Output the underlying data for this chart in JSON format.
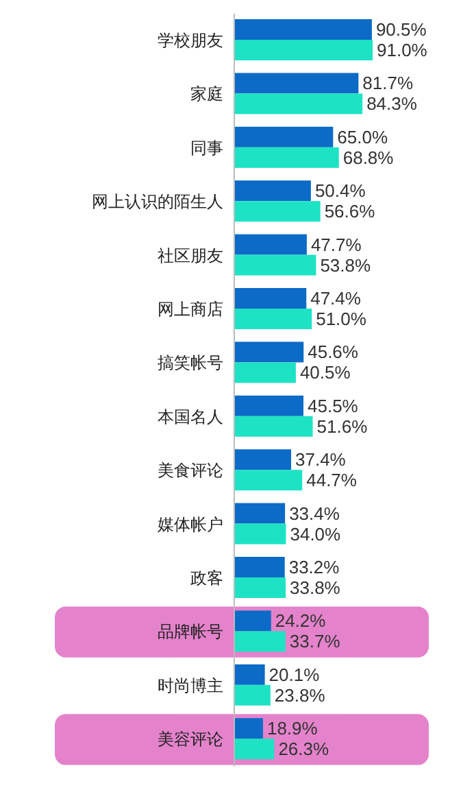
{
  "chart_data": {
    "type": "bar",
    "orientation": "horizontal",
    "categories": [
      "学校朋友",
      "家庭",
      "同事",
      "网上认识的陌生人",
      "社区朋友",
      "网上商店",
      "搞笑帐号",
      "本国名人",
      "美食评论",
      "媒体帐户",
      "政客",
      "品牌帐号",
      "时尚博主",
      "美容评论"
    ],
    "series": [
      {
        "color": "#0b6bc6",
        "values": [
          90.5,
          81.7,
          65.0,
          50.4,
          47.7,
          47.4,
          45.6,
          45.5,
          37.4,
          33.4,
          33.2,
          24.2,
          20.1,
          18.9
        ],
        "value_labels": [
          "90.5%",
          "81.7%",
          "65.0%",
          "50.4%",
          "47.7%",
          "47.4%",
          "45.6%",
          "45.5%",
          "37.4%",
          "33.4%",
          "33.2%",
          "24.2%",
          "20.1%",
          "18.9%"
        ]
      },
      {
        "color": "#1de3c4",
        "values": [
          91.0,
          84.3,
          68.8,
          56.6,
          53.8,
          51.0,
          40.5,
          51.6,
          44.7,
          34.0,
          33.8,
          33.7,
          23.8,
          26.3
        ],
        "value_labels": [
          "91.0%",
          "84.3%",
          "68.8%",
          "56.6%",
          "53.8%",
          "51.0%",
          "40.5%",
          "51.6%",
          "44.7%",
          "34.0%",
          "33.8%",
          "33.7%",
          "23.8%",
          "26.3%"
        ]
      }
    ],
    "bands": [
      {
        "axis": "y",
        "from": "品牌帐号",
        "to": "品牌帐号",
        "color": "#e483cb"
      },
      {
        "axis": "y",
        "from": "美容评论",
        "to": "美容评论",
        "color": "#e483cb"
      }
    ]
  }
}
